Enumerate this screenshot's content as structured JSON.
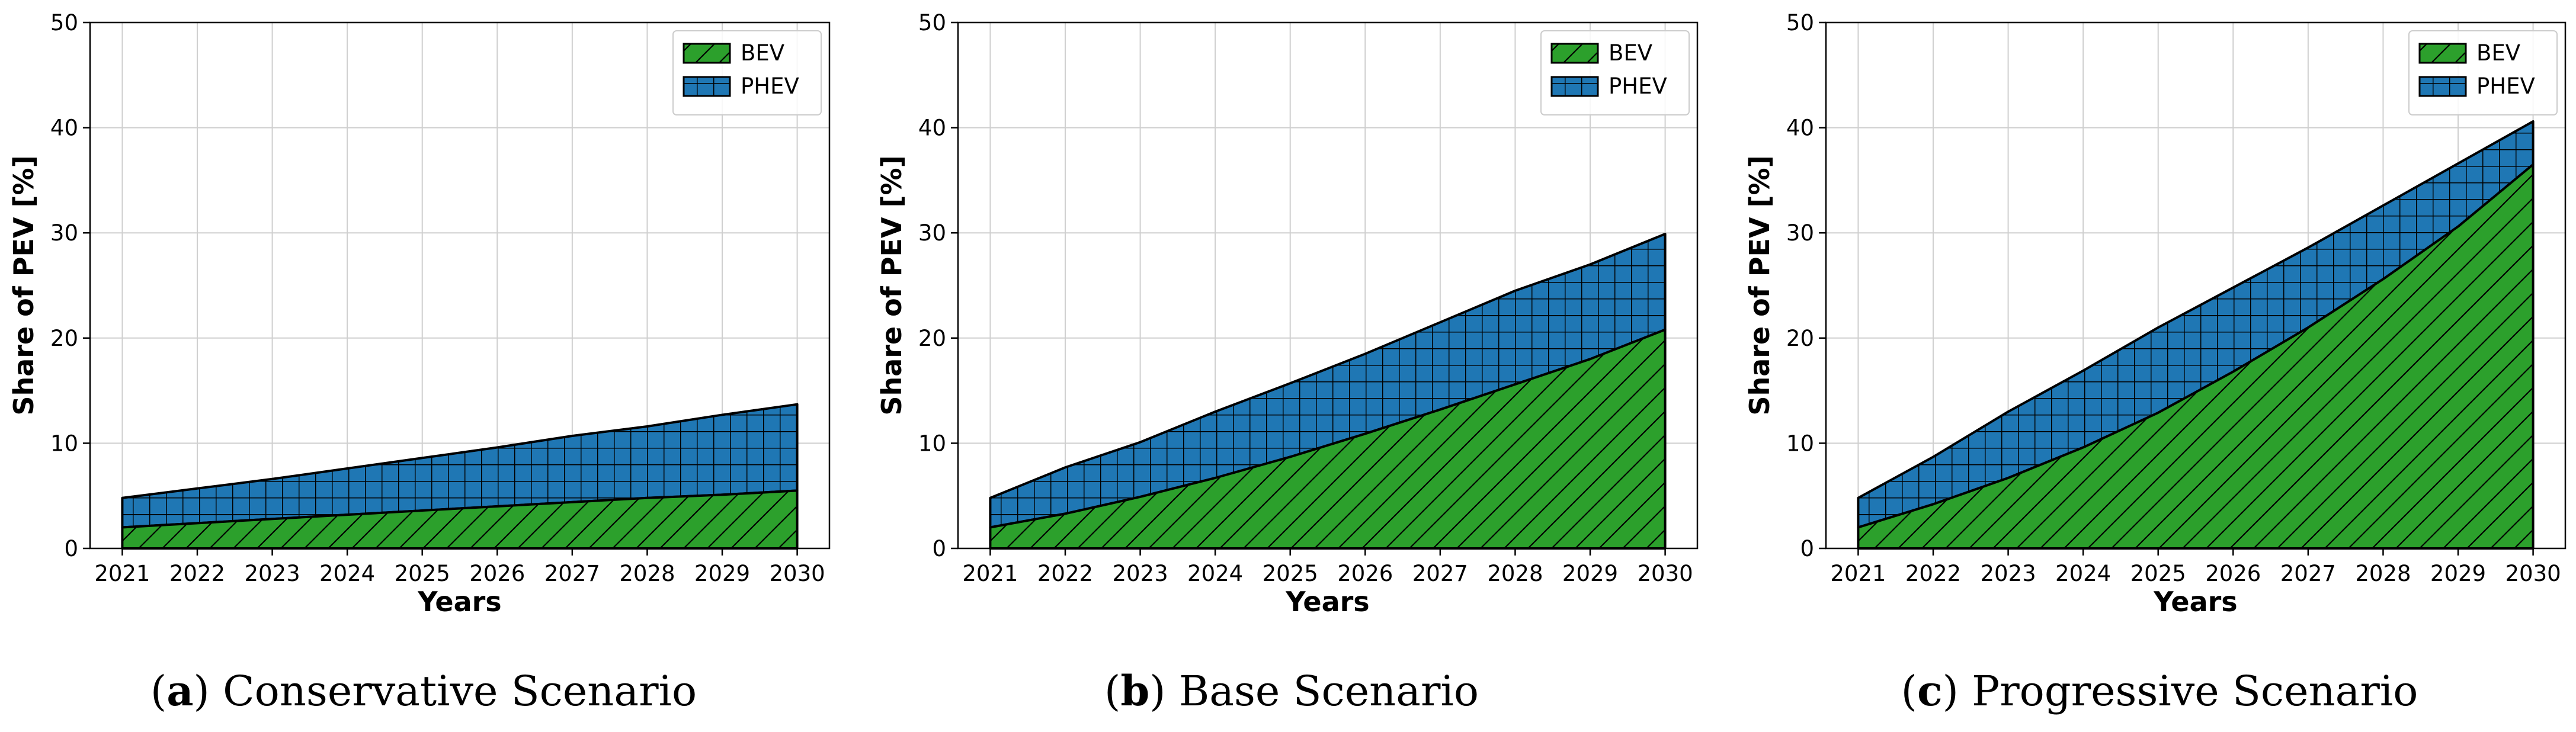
{
  "colors": {
    "bev": "#2ca02c",
    "phev": "#1f77b4",
    "grid": "#cfcfcf",
    "edge": "#000000"
  },
  "legend": {
    "placement": "top-right",
    "bev_label": "BEV",
    "phev_label": "PHEV"
  },
  "chart_data": [
    {
      "type": "area",
      "stacked": true,
      "xlabel": "Years",
      "ylabel": "Share of PEV [%]",
      "ylim": [
        0,
        50
      ],
      "yticks": [
        "0",
        "10",
        "20",
        "30",
        "40",
        "50"
      ],
      "grid": true,
      "x": [
        "2021",
        "2022",
        "2023",
        "2024",
        "2025",
        "2026",
        "2027",
        "2028",
        "2029",
        "2030"
      ],
      "series": [
        {
          "name": "BEV",
          "hatch": "diagonal",
          "values": [
            2.0,
            2.4,
            2.8,
            3.2,
            3.6,
            4.0,
            4.4,
            4.8,
            5.1,
            5.5
          ]
        },
        {
          "name": "PHEV",
          "hatch": "grid",
          "values": [
            2.8,
            3.3,
            3.8,
            4.4,
            5.0,
            5.6,
            6.3,
            6.8,
            7.6,
            8.2
          ]
        }
      ],
      "caption": {
        "letter": "a",
        "text": ") Conservative Scenario",
        "open": "("
      }
    },
    {
      "type": "area",
      "stacked": true,
      "xlabel": "Years",
      "ylabel": "Share of PEV [%]",
      "ylim": [
        0,
        50
      ],
      "yticks": [
        "0",
        "10",
        "20",
        "30",
        "40",
        "50"
      ],
      "grid": true,
      "x": [
        "2021",
        "2022",
        "2023",
        "2024",
        "2025",
        "2026",
        "2027",
        "2028",
        "2029",
        "2030"
      ],
      "series": [
        {
          "name": "BEV",
          "hatch": "diagonal",
          "values": [
            2.0,
            3.3,
            4.9,
            6.7,
            8.7,
            10.9,
            13.2,
            15.6,
            18.0,
            20.8
          ]
        },
        {
          "name": "PHEV",
          "hatch": "grid",
          "values": [
            2.8,
            4.4,
            5.2,
            6.3,
            7.0,
            7.6,
            8.3,
            8.9,
            9.0,
            9.1
          ]
        }
      ],
      "caption": {
        "letter": "b",
        "text": ") Base Scenario",
        "open": "("
      }
    },
    {
      "type": "area",
      "stacked": true,
      "xlabel": "Years",
      "ylabel": "Share of PEV [%]",
      "ylim": [
        0,
        50
      ],
      "yticks": [
        "0",
        "10",
        "20",
        "30",
        "40",
        "50"
      ],
      "grid": true,
      "x": [
        "2021",
        "2022",
        "2023",
        "2024",
        "2025",
        "2026",
        "2027",
        "2028",
        "2029",
        "2030"
      ],
      "series": [
        {
          "name": "BEV",
          "hatch": "diagonal",
          "values": [
            2.0,
            4.2,
            6.7,
            9.6,
            12.9,
            16.8,
            21.0,
            25.6,
            30.6,
            36.5
          ]
        },
        {
          "name": "PHEV",
          "hatch": "grid",
          "values": [
            2.8,
            4.5,
            6.3,
            7.3,
            8.1,
            8.0,
            7.6,
            7.0,
            6.0,
            4.1
          ]
        }
      ],
      "caption": {
        "letter": "c",
        "text": ") Progressive Scenario",
        "open": "("
      }
    }
  ]
}
